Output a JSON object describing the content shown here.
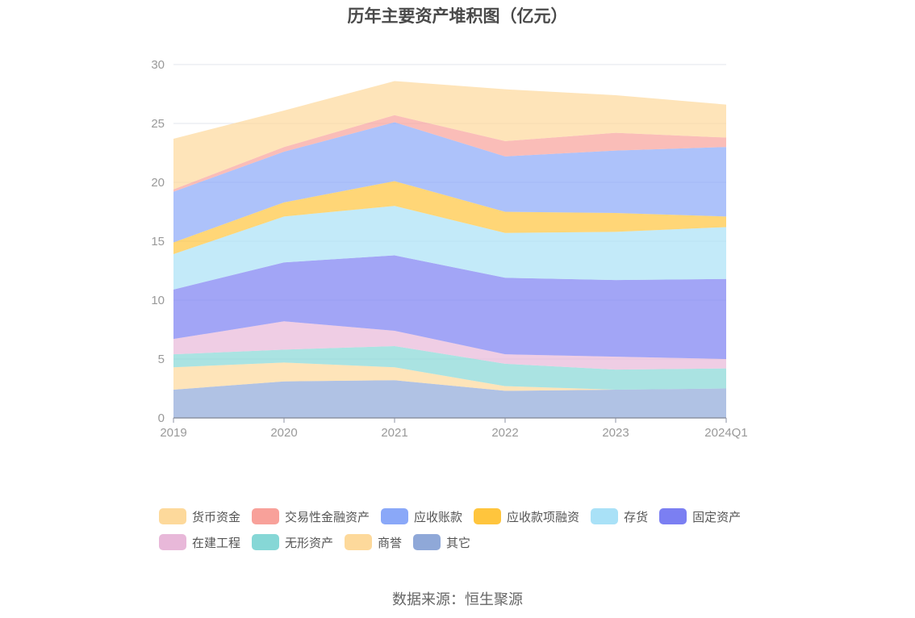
{
  "chart_data": {
    "type": "area",
    "stacked": true,
    "title": "历年主要资产堆积图（亿元）",
    "categories": [
      "2019",
      "2020",
      "2021",
      "2022",
      "2023",
      "2024Q1"
    ],
    "ylim": [
      0,
      30
    ],
    "yticks": [
      0,
      5,
      10,
      15,
      20,
      25,
      30
    ],
    "grid": true,
    "legend_position": "bottom",
    "series": [
      {
        "name": "其它",
        "color": "#8fa8d8",
        "values": [
          2.4,
          3.1,
          3.2,
          2.3,
          2.4,
          2.5
        ]
      },
      {
        "name": "商誉",
        "color": "#fdd99b",
        "values": [
          1.9,
          1.6,
          1.1,
          0.4,
          0.0,
          0.0
        ]
      },
      {
        "name": "无形资产",
        "color": "#86d7d6",
        "values": [
          1.1,
          1.1,
          1.8,
          1.9,
          1.7,
          1.7
        ]
      },
      {
        "name": "在建工程",
        "color": "#e8b8d9",
        "values": [
          1.3,
          2.4,
          1.3,
          0.8,
          1.1,
          0.8
        ]
      },
      {
        "name": "固定资产",
        "color": "#7b7ff2",
        "values": [
          4.2,
          5.0,
          6.4,
          6.5,
          6.5,
          6.8
        ]
      },
      {
        "name": "存货",
        "color": "#a9e1f7",
        "values": [
          3.0,
          3.9,
          4.2,
          3.8,
          4.1,
          4.4
        ]
      },
      {
        "name": "应收款项融资",
        "color": "#ffc53d",
        "values": [
          1.0,
          1.2,
          2.1,
          1.8,
          1.6,
          0.9
        ]
      },
      {
        "name": "应收账款",
        "color": "#8aa8f8",
        "values": [
          4.3,
          4.3,
          5.0,
          4.7,
          5.3,
          5.9
        ]
      },
      {
        "name": "交易性金融资产",
        "color": "#f8a19a",
        "values": [
          0.2,
          0.4,
          0.6,
          1.3,
          1.5,
          0.8
        ]
      },
      {
        "name": "货币资金",
        "color": "#fdd99b",
        "values": [
          4.3,
          3.1,
          2.9,
          4.4,
          3.2,
          2.8
        ]
      }
    ]
  },
  "legend_order": [
    "货币资金",
    "交易性金融资产",
    "应收账款",
    "应收款项融资",
    "存货",
    "固定资产",
    "在建工程",
    "无形资产",
    "商誉",
    "其它"
  ],
  "source": "数据来源：恒生聚源"
}
